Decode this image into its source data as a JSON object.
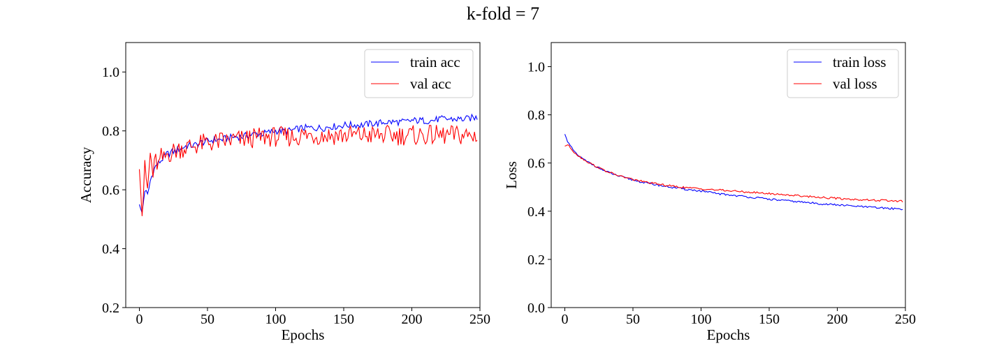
{
  "figure": {
    "suptitle": "k-fold = 7"
  },
  "chart_data": [
    {
      "type": "line",
      "title": "",
      "xlabel": "Epochs",
      "ylabel": "Accuracy",
      "xlim": [
        -10,
        250
      ],
      "ylim": [
        0.2,
        1.1
      ],
      "xticks": [
        0,
        50,
        100,
        150,
        200,
        250
      ],
      "yticks": [
        0.2,
        0.4,
        0.6,
        0.8,
        1.0
      ],
      "xtick_labels": [
        "0",
        "50",
        "100",
        "150",
        "200",
        "250"
      ],
      "ytick_labels": [
        "0.2",
        "0.4",
        "0.6",
        "0.8",
        "1.0"
      ],
      "legend_position": "upper-right",
      "grid": false,
      "series": [
        {
          "name": "train acc",
          "color": "#0000ff",
          "points": [
            [
              0,
              0.55
            ],
            [
              2,
              0.52
            ],
            [
              4,
              0.6
            ],
            [
              6,
              0.58
            ],
            [
              8,
              0.63
            ],
            [
              10,
              0.66
            ],
            [
              12,
              0.68
            ],
            [
              14,
              0.69
            ],
            [
              16,
              0.7
            ],
            [
              18,
              0.71
            ],
            [
              20,
              0.72
            ],
            [
              25,
              0.73
            ],
            [
              30,
              0.74
            ],
            [
              35,
              0.75
            ],
            [
              40,
              0.75
            ],
            [
              45,
              0.76
            ],
            [
              50,
              0.765
            ],
            [
              55,
              0.77
            ],
            [
              60,
              0.77
            ],
            [
              65,
              0.775
            ],
            [
              70,
              0.78
            ],
            [
              75,
              0.78
            ],
            [
              80,
              0.785
            ],
            [
              85,
              0.79
            ],
            [
              90,
              0.79
            ],
            [
              95,
              0.795
            ],
            [
              100,
              0.8
            ],
            [
              105,
              0.8
            ],
            [
              110,
              0.8
            ],
            [
              115,
              0.805
            ],
            [
              120,
              0.81
            ],
            [
              125,
              0.81
            ],
            [
              130,
              0.81
            ],
            [
              135,
              0.81
            ],
            [
              140,
              0.815
            ],
            [
              145,
              0.815
            ],
            [
              150,
              0.82
            ],
            [
              155,
              0.82
            ],
            [
              160,
              0.82
            ],
            [
              165,
              0.82
            ],
            [
              170,
              0.825
            ],
            [
              175,
              0.825
            ],
            [
              180,
              0.83
            ],
            [
              185,
              0.83
            ],
            [
              190,
              0.83
            ],
            [
              195,
              0.83
            ],
            [
              200,
              0.835
            ],
            [
              205,
              0.835
            ],
            [
              210,
              0.835
            ],
            [
              215,
              0.835
            ],
            [
              220,
              0.84
            ],
            [
              225,
              0.84
            ],
            [
              230,
              0.84
            ],
            [
              235,
              0.84
            ],
            [
              240,
              0.84
            ],
            [
              245,
              0.845
            ],
            [
              248,
              0.845
            ]
          ],
          "jitter": 0.012
        },
        {
          "name": "val acc",
          "color": "#ff0000",
          "points": [
            [
              0,
              0.67
            ],
            [
              2,
              0.52
            ],
            [
              4,
              0.67
            ],
            [
              6,
              0.6
            ],
            [
              8,
              0.72
            ],
            [
              10,
              0.65
            ],
            [
              12,
              0.7
            ],
            [
              14,
              0.68
            ],
            [
              16,
              0.71
            ],
            [
              18,
              0.7
            ],
            [
              20,
              0.72
            ],
            [
              25,
              0.73
            ],
            [
              30,
              0.74
            ],
            [
              35,
              0.745
            ],
            [
              40,
              0.75
            ],
            [
              45,
              0.755
            ],
            [
              50,
              0.76
            ],
            [
              55,
              0.76
            ],
            [
              60,
              0.765
            ],
            [
              65,
              0.765
            ],
            [
              70,
              0.77
            ],
            [
              75,
              0.77
            ],
            [
              80,
              0.775
            ],
            [
              85,
              0.775
            ],
            [
              90,
              0.78
            ],
            [
              95,
              0.78
            ],
            [
              100,
              0.78
            ],
            [
              105,
              0.78
            ],
            [
              110,
              0.78
            ],
            [
              115,
              0.78
            ],
            [
              120,
              0.785
            ],
            [
              125,
              0.785
            ],
            [
              130,
              0.785
            ],
            [
              135,
              0.785
            ],
            [
              140,
              0.785
            ],
            [
              145,
              0.785
            ],
            [
              150,
              0.785
            ],
            [
              155,
              0.785
            ],
            [
              160,
              0.785
            ],
            [
              165,
              0.785
            ],
            [
              170,
              0.785
            ],
            [
              175,
              0.785
            ],
            [
              180,
              0.785
            ],
            [
              185,
              0.785
            ],
            [
              190,
              0.785
            ],
            [
              195,
              0.785
            ],
            [
              200,
              0.785
            ],
            [
              205,
              0.785
            ],
            [
              210,
              0.785
            ],
            [
              215,
              0.785
            ],
            [
              220,
              0.785
            ],
            [
              225,
              0.785
            ],
            [
              230,
              0.785
            ],
            [
              235,
              0.785
            ],
            [
              240,
              0.785
            ],
            [
              245,
              0.78
            ],
            [
              248,
              0.79
            ]
          ],
          "jitter": 0.035
        }
      ]
    },
    {
      "type": "line",
      "title": "",
      "xlabel": "Epochs",
      "ylabel": "Loss",
      "xlim": [
        -10,
        250
      ],
      "ylim": [
        0.0,
        1.1
      ],
      "xticks": [
        0,
        50,
        100,
        150,
        200,
        250
      ],
      "yticks": [
        0.0,
        0.2,
        0.4,
        0.6,
        0.8,
        1.0
      ],
      "xtick_labels": [
        "0",
        "50",
        "100",
        "150",
        "200",
        "250"
      ],
      "ytick_labels": [
        "0.0",
        "0.2",
        "0.4",
        "0.6",
        "0.8",
        "1.0"
      ],
      "legend_position": "upper-right",
      "grid": false,
      "series": [
        {
          "name": "train loss",
          "color": "#0000ff",
          "points": [
            [
              0,
              0.72
            ],
            [
              2,
              0.69
            ],
            [
              4,
              0.67
            ],
            [
              6,
              0.655
            ],
            [
              8,
              0.64
            ],
            [
              10,
              0.63
            ],
            [
              15,
              0.61
            ],
            [
              20,
              0.595
            ],
            [
              25,
              0.58
            ],
            [
              30,
              0.565
            ],
            [
              35,
              0.555
            ],
            [
              40,
              0.545
            ],
            [
              45,
              0.537
            ],
            [
              50,
              0.53
            ],
            [
              55,
              0.523
            ],
            [
              60,
              0.517
            ],
            [
              65,
              0.512
            ],
            [
              70,
              0.507
            ],
            [
              75,
              0.502
            ],
            [
              80,
              0.498
            ],
            [
              85,
              0.494
            ],
            [
              90,
              0.49
            ],
            [
              95,
              0.487
            ],
            [
              100,
              0.483
            ],
            [
              105,
              0.479
            ],
            [
              110,
              0.475
            ],
            [
              115,
              0.471
            ],
            [
              120,
              0.468
            ],
            [
              125,
              0.465
            ],
            [
              130,
              0.462
            ],
            [
              135,
              0.459
            ],
            [
              140,
              0.456
            ],
            [
              145,
              0.453
            ],
            [
              150,
              0.45
            ],
            [
              155,
              0.447
            ],
            [
              160,
              0.445
            ],
            [
              165,
              0.442
            ],
            [
              170,
              0.44
            ],
            [
              175,
              0.437
            ],
            [
              180,
              0.435
            ],
            [
              185,
              0.432
            ],
            [
              190,
              0.43
            ],
            [
              195,
              0.428
            ],
            [
              200,
              0.426
            ],
            [
              205,
              0.424
            ],
            [
              210,
              0.422
            ],
            [
              215,
              0.42
            ],
            [
              220,
              0.418
            ],
            [
              225,
              0.416
            ],
            [
              230,
              0.414
            ],
            [
              235,
              0.413
            ],
            [
              240,
              0.411
            ],
            [
              245,
              0.41
            ],
            [
              248,
              0.409
            ]
          ],
          "jitter": 0.004
        },
        {
          "name": "val loss",
          "color": "#ff0000",
          "points": [
            [
              0,
              0.67
            ],
            [
              2,
              0.675
            ],
            [
              4,
              0.665
            ],
            [
              6,
              0.65
            ],
            [
              8,
              0.64
            ],
            [
              10,
              0.63
            ],
            [
              15,
              0.61
            ],
            [
              20,
              0.595
            ],
            [
              25,
              0.58
            ],
            [
              30,
              0.567
            ],
            [
              35,
              0.556
            ],
            [
              40,
              0.547
            ],
            [
              45,
              0.539
            ],
            [
              50,
              0.532
            ],
            [
              55,
              0.526
            ],
            [
              60,
              0.52
            ],
            [
              65,
              0.515
            ],
            [
              70,
              0.511
            ],
            [
              75,
              0.507
            ],
            [
              80,
              0.503
            ],
            [
              85,
              0.5
            ],
            [
              90,
              0.497
            ],
            [
              95,
              0.495
            ],
            [
              100,
              0.493
            ],
            [
              105,
              0.491
            ],
            [
              110,
              0.489
            ],
            [
              115,
              0.487
            ],
            [
              120,
              0.485
            ],
            [
              125,
              0.483
            ],
            [
              130,
              0.481
            ],
            [
              135,
              0.479
            ],
            [
              140,
              0.477
            ],
            [
              145,
              0.475
            ],
            [
              150,
              0.473
            ],
            [
              155,
              0.471
            ],
            [
              160,
              0.469
            ],
            [
              165,
              0.467
            ],
            [
              170,
              0.465
            ],
            [
              175,
              0.463
            ],
            [
              180,
              0.461
            ],
            [
              185,
              0.459
            ],
            [
              190,
              0.457
            ],
            [
              195,
              0.455
            ],
            [
              200,
              0.453
            ],
            [
              205,
              0.451
            ],
            [
              210,
              0.45
            ],
            [
              215,
              0.448
            ],
            [
              220,
              0.447
            ],
            [
              225,
              0.446
            ],
            [
              230,
              0.445
            ],
            [
              235,
              0.444
            ],
            [
              240,
              0.443
            ],
            [
              245,
              0.442
            ],
            [
              248,
              0.441
            ]
          ],
          "jitter": 0.004
        }
      ]
    }
  ]
}
